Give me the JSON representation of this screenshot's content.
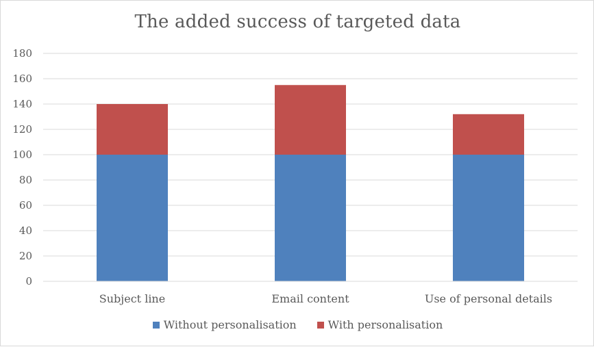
{
  "chart_data": {
    "type": "bar",
    "stacked": true,
    "title": "The added success of targeted data",
    "xlabel": "",
    "ylabel": "",
    "categories": [
      "Subject line",
      "Email content",
      "Use of personal details"
    ],
    "series": [
      {
        "name": "Without personalisation",
        "values": [
          100,
          100,
          100
        ],
        "color": "#4f81bd"
      },
      {
        "name": "With personalisation",
        "values": [
          40,
          55,
          32
        ],
        "color": "#c0504d"
      }
    ],
    "ylim": [
      0,
      180
    ],
    "yticks": [
      "0",
      "20",
      "40",
      "60",
      "80",
      "100",
      "120",
      "140",
      "160",
      "180"
    ],
    "grid": true,
    "legend_position": "bottom"
  }
}
